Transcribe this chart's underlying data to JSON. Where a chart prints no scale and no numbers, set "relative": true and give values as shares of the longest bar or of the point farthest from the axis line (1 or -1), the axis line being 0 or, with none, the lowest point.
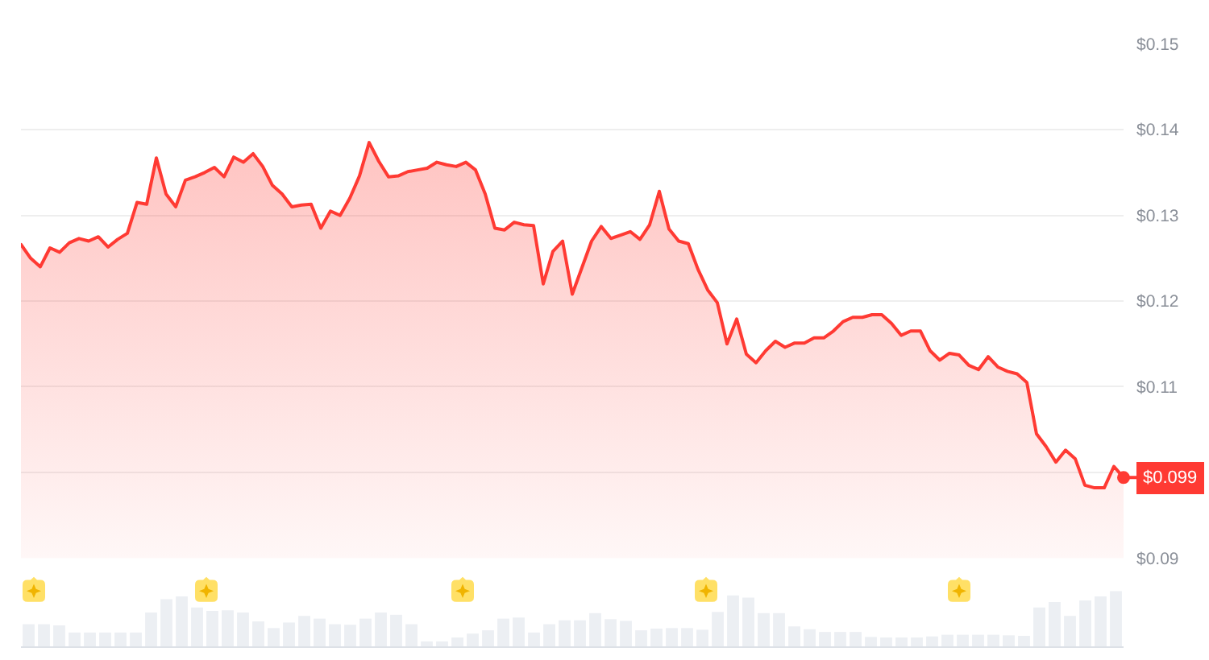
{
  "chart_data": [
    {
      "type": "area",
      "categories": [
        null,
        null,
        null,
        null,
        null,
        null,
        null,
        null,
        null,
        null,
        null,
        null,
        null,
        null,
        null,
        null,
        null,
        null,
        null,
        null,
        null,
        null,
        null,
        null,
        null,
        null,
        null,
        null,
        null,
        null,
        null,
        null,
        null,
        null,
        null,
        null,
        null,
        null,
        null,
        null,
        null,
        null,
        null,
        null,
        null,
        null,
        null,
        null,
        null,
        null,
        null,
        null,
        null,
        null,
        null,
        null,
        null,
        null,
        null,
        null,
        null,
        null,
        null,
        null,
        null,
        null,
        null,
        null,
        null,
        null,
        null,
        null,
        null,
        null,
        null,
        null,
        null,
        null,
        null,
        null,
        null,
        null,
        null,
        null,
        null,
        null,
        null,
        null,
        null,
        null,
        null,
        null,
        null,
        null,
        null,
        null,
        null,
        null,
        null,
        null,
        null,
        null,
        null,
        null,
        null,
        null,
        null,
        null,
        null,
        null,
        null,
        null,
        null,
        null,
        null
      ],
      "series": [
        {
          "color": "#ff3a33",
          "values": [
            0.1266,
            0.125,
            0.124,
            0.1262,
            0.1257,
            0.1268,
            0.1273,
            0.127,
            0.1275,
            0.1263,
            0.1272,
            0.1279,
            0.1315,
            0.1313,
            0.1367,
            0.1325,
            0.131,
            0.1341,
            0.1345,
            0.135,
            0.1356,
            0.1345,
            0.1368,
            0.1362,
            0.1372,
            0.1357,
            0.1335,
            0.1325,
            0.131,
            0.1312,
            0.1313,
            0.1285,
            0.1305,
            0.13,
            0.132,
            0.1346,
            0.1385,
            0.1363,
            0.1345,
            0.1346,
            0.1351,
            0.1353,
            0.1355,
            0.1362,
            0.1359,
            0.1357,
            0.1362,
            0.1353,
            0.1325,
            0.1285,
            0.1283,
            0.1292,
            0.1289,
            0.1288,
            0.122,
            0.1258,
            0.127,
            0.1208,
            0.1239,
            0.127,
            0.1287,
            0.1273,
            0.1277,
            0.1281,
            0.1272,
            0.1289,
            0.1328,
            0.1284,
            0.127,
            0.1267,
            0.1237,
            0.1213,
            0.1198,
            0.115,
            0.1179,
            0.1138,
            0.1128,
            0.1142,
            0.1153,
            0.1146,
            0.1151,
            0.1151,
            0.1157,
            0.1157,
            0.1165,
            0.1176,
            0.1181,
            0.1181,
            0.1184,
            0.1184,
            0.1174,
            0.116,
            0.1165,
            0.1165,
            0.1142,
            0.1131,
            0.1139,
            0.1137,
            0.1125,
            0.112,
            0.1135,
            0.1123,
            0.1118,
            0.1115,
            0.1105,
            0.1045,
            0.103,
            0.1012,
            0.1026,
            0.1016,
            0.0985,
            0.0982,
            0.0982,
            0.1007,
            0.0994
          ],
          "value_labels": [
            null,
            null,
            null,
            null,
            null,
            null,
            null,
            null,
            null,
            null,
            null,
            null,
            null,
            null,
            null,
            null,
            null,
            null,
            null,
            null,
            null,
            null,
            null,
            null,
            null,
            null,
            null,
            null,
            null,
            null,
            null,
            null,
            null,
            null,
            null,
            null,
            null,
            null,
            null,
            null,
            null,
            null,
            null,
            null,
            null,
            null,
            null,
            null,
            null,
            null,
            null,
            null,
            null,
            null,
            null,
            null,
            null,
            null,
            null,
            null,
            null,
            null,
            null,
            null,
            null,
            null,
            null,
            null,
            null,
            null,
            null,
            null,
            null,
            null,
            null,
            null,
            null,
            null,
            null,
            null,
            null,
            null,
            null,
            null,
            null,
            null,
            null,
            null,
            null,
            null,
            null,
            null,
            null,
            null,
            null,
            null,
            null,
            null,
            null,
            null,
            null,
            null,
            null,
            null,
            null,
            null,
            null,
            null,
            null,
            null,
            null,
            null,
            null,
            null,
            "$0.099"
          ]
        }
      ],
      "ylim": [
        0.09,
        0.15
      ],
      "yticks": [
        {
          "value": 0.09,
          "label": "$0.09"
        },
        {
          "value": 0.1,
          "label": null
        },
        {
          "value": 0.11,
          "label": "$0.11"
        },
        {
          "value": 0.12,
          "label": "$0.12"
        },
        {
          "value": 0.13,
          "label": "$0.13"
        },
        {
          "value": 0.14,
          "label": "$0.14"
        },
        {
          "value": 0.15,
          "label": "$0.15"
        }
      ],
      "grid": "y",
      "tick_labels": "y"
    },
    {
      "type": "bar",
      "relative": true,
      "categories": [
        null,
        null,
        null,
        null,
        null,
        null,
        null,
        null,
        null,
        null,
        null,
        null,
        null,
        null,
        null,
        null,
        null,
        null,
        null,
        null,
        null,
        null,
        null,
        null,
        null,
        null,
        null,
        null,
        null,
        null,
        null,
        null,
        null,
        null,
        null,
        null,
        null,
        null,
        null,
        null,
        null,
        null,
        null,
        null,
        null,
        null,
        null,
        null,
        null,
        null,
        null,
        null,
        null,
        null,
        null,
        null,
        null,
        null,
        null,
        null,
        null,
        null,
        null,
        null,
        null,
        null,
        null,
        null,
        null,
        null,
        null,
        null
      ],
      "values": [
        0.4,
        0.4,
        0.38,
        0.25,
        0.25,
        0.25,
        0.25,
        0.25,
        0.61,
        0.85,
        0.9,
        0.7,
        0.64,
        0.65,
        0.61,
        0.45,
        0.33,
        0.43,
        0.55,
        0.5,
        0.4,
        0.39,
        0.5,
        0.61,
        0.57,
        0.4,
        0.09,
        0.09,
        0.16,
        0.23,
        0.29,
        0.5,
        0.52,
        0.25,
        0.4,
        0.47,
        0.47,
        0.6,
        0.49,
        0.46,
        0.29,
        0.32,
        0.33,
        0.33,
        0.3,
        0.62,
        0.92,
        0.88,
        0.6,
        0.6,
        0.36,
        0.31,
        0.26,
        0.26,
        0.26,
        0.17,
        0.16,
        0.16,
        0.16,
        0.18,
        0.21,
        0.21,
        0.21,
        0.21,
        0.2,
        0.19,
        0.7,
        0.8,
        0.55,
        0.83,
        0.9,
        1.0
      ],
      "color": "#eceff3",
      "tick_labels": false
    }
  ]
}
